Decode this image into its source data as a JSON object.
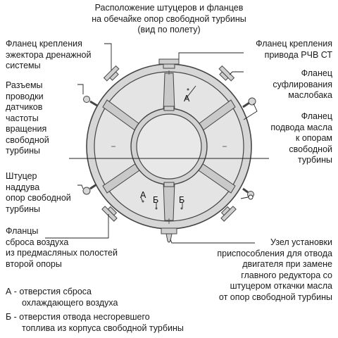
{
  "title": {
    "lines": [
      "Расположение штуцеров и фланцев",
      "на обечайке опор свободной турбины",
      "(вид по полету)"
    ]
  },
  "labels": {
    "ejector_flange": [
      "Фланец крепления",
      "эжектора дренажной",
      "системы"
    ],
    "sensor_connectors": [
      "Разъемы",
      "проводки",
      "датчиков",
      "частоты",
      "вращения",
      "свободной",
      "турбины"
    ],
    "boost_fitting": [
      "Штуцер",
      "наддува",
      "опор свободной",
      "турбины"
    ],
    "air_release_flanges": [
      "Фланцы",
      "сброса воздуха",
      "из предмасляных полостей",
      "второй опоры"
    ],
    "rvv_drive_flange": [
      "Фланец крепления",
      "привода РЧВ СТ"
    ],
    "oil_tank_vent_flange": [
      "Фланец",
      "суфлирования",
      "маслобака"
    ],
    "oil_supply_flange": [
      "Фланец",
      "подвода масла",
      "к опорам",
      "свободной",
      "турбины"
    ],
    "mount_unit": [
      "Узел установки",
      "приспособления для отвода",
      "двигателя при замене",
      "главного редуктора со",
      "штуцером откачки масла",
      "от опор свободной турбины"
    ]
  },
  "markers": {
    "a_upper": "А",
    "a_lower": "А",
    "b_left": "Б",
    "b_right": "Б"
  },
  "legend": [
    {
      "lines": [
        "А - отверстия сброса",
        "охлаждающего воздуха"
      ]
    },
    {
      "lines": [
        "Б - отверстия отвода несгоревшего",
        "топлива из корпуса свободной турбины"
      ]
    }
  ],
  "colors": {
    "ring_fill": "#d6d6d6",
    "inner_fill": "#e6e6e6",
    "strut_fill": "#c8c8c8",
    "stroke": "#444444",
    "leader_circle": "#ffffff"
  }
}
